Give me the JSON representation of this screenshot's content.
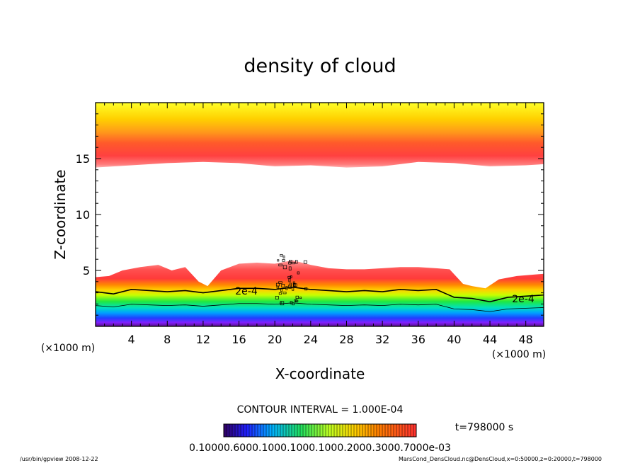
{
  "chart_data": {
    "type": "heatmap",
    "title": "density of cloud",
    "xlabel": "X-coordinate",
    "ylabel": "Z-coordinate",
    "x_unit_left": "(×1000 m)",
    "x_unit_right": "(×1000 m)",
    "xlim": [
      0,
      50
    ],
    "ylim": [
      0,
      20
    ],
    "x_ticks": [
      4,
      8,
      12,
      16,
      20,
      24,
      28,
      32,
      36,
      40,
      44,
      48
    ],
    "y_ticks": [
      5,
      10,
      15
    ],
    "contour_interval_text": "CONTOUR INTERVAL = 1.000E-04",
    "time_text": "t=798000 s",
    "colorbar_labels_text": "0.10000.6000.1000.1000.1000.2000.3000.7000e-03",
    "contour_labels": [
      "2e-4",
      "2e-4"
    ],
    "upper_cloud_base": [
      {
        "x": 0,
        "z": 14.2
      },
      {
        "x": 4,
        "z": 14.4
      },
      {
        "x": 8,
        "z": 14.6
      },
      {
        "x": 12,
        "z": 14.7
      },
      {
        "x": 16,
        "z": 14.6
      },
      {
        "x": 20,
        "z": 14.3
      },
      {
        "x": 24,
        "z": 14.4
      },
      {
        "x": 28,
        "z": 14.2
      },
      {
        "x": 32,
        "z": 14.3
      },
      {
        "x": 36,
        "z": 14.7
      },
      {
        "x": 40,
        "z": 14.6
      },
      {
        "x": 44,
        "z": 14.3
      },
      {
        "x": 48,
        "z": 14.4
      },
      {
        "x": 50,
        "z": 14.5
      }
    ],
    "lower_cloud_top": [
      {
        "x": 0,
        "z": 4.4
      },
      {
        "x": 1.5,
        "z": 4.5
      },
      {
        "x": 3,
        "z": 5.0
      },
      {
        "x": 5,
        "z": 5.3
      },
      {
        "x": 7,
        "z": 5.5
      },
      {
        "x": 8.5,
        "z": 5.0
      },
      {
        "x": 10,
        "z": 5.3
      },
      {
        "x": 11.5,
        "z": 4.0
      },
      {
        "x": 12.5,
        "z": 3.6
      },
      {
        "x": 14,
        "z": 5.0
      },
      {
        "x": 16,
        "z": 5.6
      },
      {
        "x": 18,
        "z": 5.7
      },
      {
        "x": 20,
        "z": 5.6
      },
      {
        "x": 22,
        "z": 5.9
      },
      {
        "x": 24,
        "z": 5.5
      },
      {
        "x": 26,
        "z": 5.2
      },
      {
        "x": 28,
        "z": 5.1
      },
      {
        "x": 30,
        "z": 5.1
      },
      {
        "x": 32,
        "z": 5.2
      },
      {
        "x": 34,
        "z": 5.3
      },
      {
        "x": 36,
        "z": 5.3
      },
      {
        "x": 38,
        "z": 5.2
      },
      {
        "x": 39.5,
        "z": 5.1
      },
      {
        "x": 41,
        "z": 3.8
      },
      {
        "x": 42,
        "z": 3.6
      },
      {
        "x": 43.5,
        "z": 3.4
      },
      {
        "x": 45,
        "z": 4.2
      },
      {
        "x": 47,
        "z": 4.5
      },
      {
        "x": 50,
        "z": 4.7
      }
    ],
    "contour_2e-4": [
      {
        "x": 0,
        "z": 3.1
      },
      {
        "x": 2,
        "z": 2.9
      },
      {
        "x": 4,
        "z": 3.3
      },
      {
        "x": 6,
        "z": 3.2
      },
      {
        "x": 8,
        "z": 3.1
      },
      {
        "x": 10,
        "z": 3.2
      },
      {
        "x": 12,
        "z": 3.0
      },
      {
        "x": 14,
        "z": 3.2
      },
      {
        "x": 16,
        "z": 3.4
      },
      {
        "x": 18,
        "z": 3.4
      },
      {
        "x": 20,
        "z": 3.3
      },
      {
        "x": 22,
        "z": 3.5
      },
      {
        "x": 24,
        "z": 3.3
      },
      {
        "x": 26,
        "z": 3.2
      },
      {
        "x": 28,
        "z": 3.1
      },
      {
        "x": 30,
        "z": 3.2
      },
      {
        "x": 32,
        "z": 3.1
      },
      {
        "x": 34,
        "z": 3.3
      },
      {
        "x": 36,
        "z": 3.2
      },
      {
        "x": 38,
        "z": 3.3
      },
      {
        "x": 40,
        "z": 2.6
      },
      {
        "x": 42,
        "z": 2.5
      },
      {
        "x": 44,
        "z": 2.2
      },
      {
        "x": 46,
        "z": 2.6
      },
      {
        "x": 48,
        "z": 2.7
      },
      {
        "x": 50,
        "z": 2.8
      }
    ]
  },
  "footer": {
    "left": "/usr/bin/gpview   2008-12-22",
    "right": "MarsCond_DensCloud.nc@DensCloud,x=0:50000,z=0:20000,t=798000"
  }
}
